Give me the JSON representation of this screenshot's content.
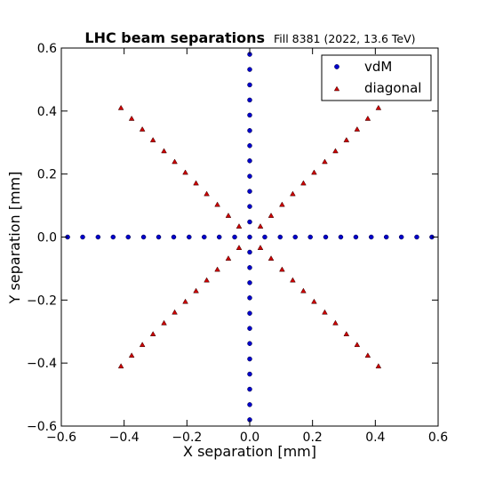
{
  "chart_data": {
    "type": "scatter",
    "title": "LHC beam separations",
    "subtitle": "Fill 8381 (2022, 13.6 TeV)",
    "xlabel": "X separation [mm]",
    "ylabel": "Y separation [mm]",
    "xlim": [
      -0.6,
      0.6
    ],
    "ylim": [
      -0.6,
      0.6
    ],
    "xticks": [
      -0.6,
      -0.4,
      -0.2,
      0.0,
      0.2,
      0.4,
      0.6
    ],
    "yticks": [
      -0.6,
      -0.4,
      -0.2,
      0.0,
      0.2,
      0.4,
      0.6
    ],
    "xtick_labels": [
      "−0.6",
      "−0.4",
      "−0.2",
      "0.0",
      "0.2",
      "0.4",
      "0.6"
    ],
    "ytick_labels": [
      "−0.6",
      "−0.4",
      "−0.2",
      "0.0",
      "0.2",
      "0.4",
      "0.6"
    ],
    "grid": false,
    "legend_position": "top-right",
    "series": [
      {
        "name": "vdM",
        "marker": "circle",
        "color": "#0000cc",
        "points": [
          [
            -0.58,
            0
          ],
          [
            -0.532,
            0
          ],
          [
            -0.483,
            0
          ],
          [
            -0.435,
            0
          ],
          [
            -0.387,
            0
          ],
          [
            -0.338,
            0
          ],
          [
            -0.29,
            0
          ],
          [
            -0.242,
            0
          ],
          [
            -0.193,
            0
          ],
          [
            -0.145,
            0
          ],
          [
            -0.097,
            0
          ],
          [
            -0.048,
            0
          ],
          [
            0.0,
            0
          ],
          [
            0.048,
            0
          ],
          [
            0.097,
            0
          ],
          [
            0.145,
            0
          ],
          [
            0.193,
            0
          ],
          [
            0.242,
            0
          ],
          [
            0.29,
            0
          ],
          [
            0.338,
            0
          ],
          [
            0.387,
            0
          ],
          [
            0.435,
            0
          ],
          [
            0.483,
            0
          ],
          [
            0.532,
            0
          ],
          [
            0.58,
            0
          ],
          [
            0,
            -0.58
          ],
          [
            0,
            -0.532
          ],
          [
            0,
            -0.483
          ],
          [
            0,
            -0.435
          ],
          [
            0,
            -0.387
          ],
          [
            0,
            -0.338
          ],
          [
            0,
            -0.29
          ],
          [
            0,
            -0.242
          ],
          [
            0,
            -0.193
          ],
          [
            0,
            -0.145
          ],
          [
            0,
            -0.097
          ],
          [
            0,
            -0.048
          ],
          [
            0,
            0.048
          ],
          [
            0,
            0.097
          ],
          [
            0,
            0.145
          ],
          [
            0,
            0.193
          ],
          [
            0,
            0.242
          ],
          [
            0,
            0.29
          ],
          [
            0,
            0.338
          ],
          [
            0,
            0.387
          ],
          [
            0,
            0.435
          ],
          [
            0,
            0.483
          ],
          [
            0,
            0.532
          ],
          [
            0,
            0.58
          ]
        ]
      },
      {
        "name": "diagonal",
        "marker": "triangle",
        "color": "#cc0000",
        "points": [
          [
            0.034,
            0.034
          ],
          [
            0.068,
            0.068
          ],
          [
            0.103,
            0.103
          ],
          [
            0.137,
            0.137
          ],
          [
            0.171,
            0.171
          ],
          [
            0.205,
            0.205
          ],
          [
            0.239,
            0.239
          ],
          [
            0.273,
            0.273
          ],
          [
            0.308,
            0.308
          ],
          [
            0.342,
            0.342
          ],
          [
            0.376,
            0.376
          ],
          [
            0.41,
            0.41
          ],
          [
            -0.034,
            0.034
          ],
          [
            -0.068,
            0.068
          ],
          [
            -0.103,
            0.103
          ],
          [
            -0.137,
            0.137
          ],
          [
            -0.171,
            0.171
          ],
          [
            -0.205,
            0.205
          ],
          [
            -0.239,
            0.239
          ],
          [
            -0.273,
            0.273
          ],
          [
            -0.308,
            0.308
          ],
          [
            -0.342,
            0.342
          ],
          [
            -0.376,
            0.376
          ],
          [
            -0.41,
            0.41
          ],
          [
            0.034,
            -0.034
          ],
          [
            0.068,
            -0.068
          ],
          [
            0.103,
            -0.103
          ],
          [
            0.137,
            -0.137
          ],
          [
            0.171,
            -0.171
          ],
          [
            0.205,
            -0.205
          ],
          [
            0.239,
            -0.239
          ],
          [
            0.273,
            -0.273
          ],
          [
            0.308,
            -0.308
          ],
          [
            0.342,
            -0.342
          ],
          [
            0.376,
            -0.376
          ],
          [
            0.41,
            -0.41
          ],
          [
            -0.034,
            -0.034
          ],
          [
            -0.068,
            -0.068
          ],
          [
            -0.103,
            -0.103
          ],
          [
            -0.137,
            -0.137
          ],
          [
            -0.171,
            -0.171
          ],
          [
            -0.205,
            -0.205
          ],
          [
            -0.239,
            -0.239
          ],
          [
            -0.273,
            -0.273
          ],
          [
            -0.308,
            -0.308
          ],
          [
            -0.342,
            -0.342
          ],
          [
            -0.376,
            -0.376
          ],
          [
            -0.41,
            -0.41
          ]
        ]
      }
    ]
  }
}
